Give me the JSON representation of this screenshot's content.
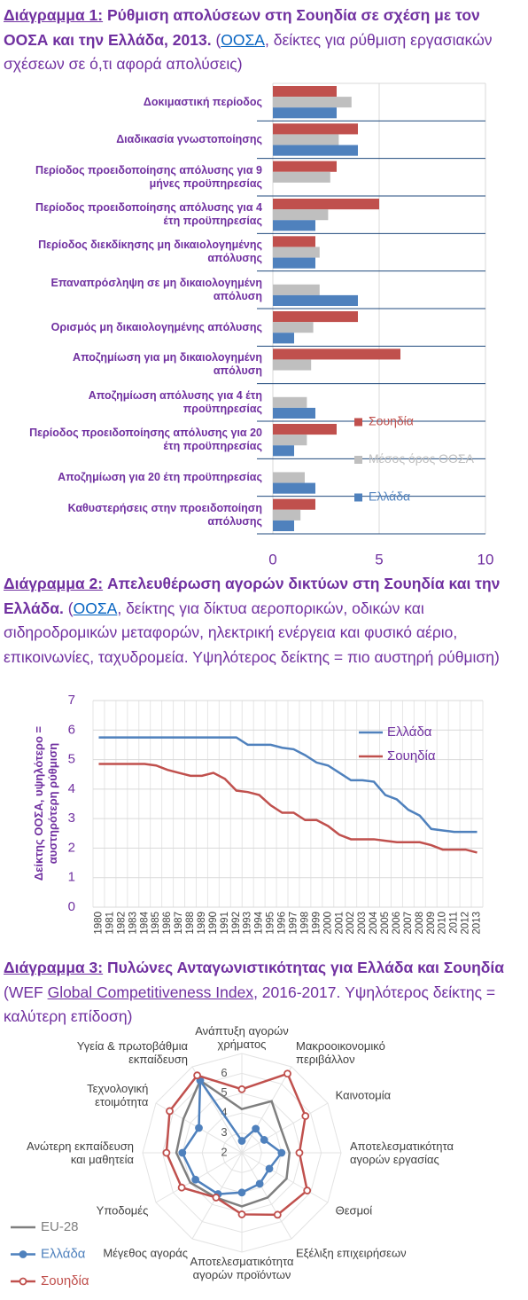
{
  "chart_data": [
    {
      "type": "bar",
      "orientation": "horizontal",
      "label": "Διάγραμμα 1:",
      "title": "Ρύθμιση απολύσεων στη Σουηδία σε σχέση με τον ΟΟΣΑ και την Ελλάδα, 2013.",
      "subtitle": [
        "(",
        "ΟΟΣΑ",
        ", δείκτες για ρύθμιση εργασιακών σχέσεων σε ό,τι αφορά απολύσεις)"
      ],
      "categories": [
        "Δοκιμαστική περίοδος",
        "Διαδικασία γνωστοποίησης",
        "Περίοδος προειδοποίησης απόλυσης για 9\nμήνες προϋπηρεσίας",
        "Περίοδος προειδοποίησης απόλυσης για 4\nέτη προϋπηρεσίας",
        "Περίοδος διεκδίκησης μη δικαιολογημένης\nαπόλυσης",
        "Επαναπρόσληψη σε μη δικαιολογημένη\nαπόλυση",
        "Ορισμός μη δικαιολογημένης απόλυσης",
        "Αποζημίωση για μη δικαιολογημένη\nαπόλυση",
        "Αποζημίωση απόλυσης για 4 έτη\nπροϋπηρεσίας",
        "Περίοδος προειδοποίησης απόλυσης για 20\nέτη προϋπηρεσίας",
        "Αποζημίωση για 20 έτη προϋπηρεσίας",
        "Καθυστερήσεις στην προειδοποίηση\nαπόλυσης"
      ],
      "series": [
        {
          "name": "Σουηδία",
          "color": "#c0504d",
          "values": [
            3,
            4,
            3,
            5,
            2,
            0,
            4,
            6,
            0,
            3,
            0,
            2
          ]
        },
        {
          "name": "Μέσος όρος ΟΟΣΑ",
          "color": "#bfbfbf",
          "values": [
            3.7,
            3.1,
            2.7,
            2.6,
            2.2,
            2.2,
            1.9,
            1.8,
            1.6,
            1.6,
            1.5,
            1.3
          ]
        },
        {
          "name": "Ελλάδα",
          "color": "#4f81bd",
          "values": [
            3,
            4,
            0,
            2,
            2,
            4,
            1,
            0,
            2,
            1,
            2,
            1
          ]
        }
      ],
      "xlim": [
        0,
        10
      ],
      "xticks": [
        0,
        5,
        10
      ],
      "grid": true,
      "legend": "right"
    },
    {
      "type": "line",
      "label": "Διάγραμμα 2:",
      "title": "Απελευθέρωση αγορών δικτύων στη Σουηδία και την Ελλάδα.",
      "subtitle": [
        "(",
        "ΟΟΣΑ",
        ", δείκτης για δίκτυα αεροπορικών, οδικών και σιδηροδρομικών μεταφορών, ηλεκτρική ενέργεια και φυσικό αέριο, επικοινωνίες, ταχυδρομεία. Υψηλότερος δείκτης = πιο αυστηρή ρύθμιση)"
      ],
      "ylabel": "Δείκτης ΟΟΣΑ, υψηλότερο =\nαυστηρότερη ρύθμιση",
      "categories": [
        "1980",
        "1981",
        "1982",
        "1983",
        "1984",
        "1985",
        "1986",
        "1987",
        "1988",
        "1989",
        "1990",
        "1991",
        "1992",
        "1993",
        "1994",
        "1995",
        "1996",
        "1997",
        "1998",
        "1999",
        "2000",
        "2001",
        "2002",
        "2003",
        "2004",
        "2005",
        "2006",
        "2007",
        "2008",
        "2009",
        "2010",
        "2011",
        "2012",
        "2013"
      ],
      "series": [
        {
          "name": "Ελλάδα",
          "color": "#4f81bd",
          "values": [
            5.75,
            5.75,
            5.75,
            5.75,
            5.75,
            5.75,
            5.75,
            5.75,
            5.75,
            5.75,
            5.75,
            5.75,
            5.75,
            5.5,
            5.5,
            5.5,
            5.4,
            5.35,
            5.15,
            4.9,
            4.8,
            4.55,
            4.3,
            4.3,
            4.25,
            3.8,
            3.65,
            3.3,
            3.1,
            2.65,
            2.6,
            2.55,
            2.55,
            2.55
          ]
        },
        {
          "name": "Σουηδία",
          "color": "#c0504d",
          "values": [
            4.85,
            4.85,
            4.85,
            4.85,
            4.85,
            4.8,
            4.65,
            4.55,
            4.45,
            4.45,
            4.55,
            4.35,
            3.95,
            3.9,
            3.8,
            3.45,
            3.2,
            3.2,
            2.95,
            2.95,
            2.75,
            2.45,
            2.3,
            2.3,
            2.3,
            2.25,
            2.2,
            2.2,
            2.2,
            2.1,
            1.95,
            1.95,
            1.95,
            1.85
          ]
        }
      ],
      "ylim": [
        0,
        7
      ],
      "yticks": [
        0,
        1,
        2,
        3,
        4,
        5,
        6,
        7
      ],
      "grid": true,
      "legend": "upper right"
    },
    {
      "type": "radar",
      "label": "Διάγραμμα 3:",
      "title": "Πυλώνες Ανταγωνιστικότητας για Ελλάδα και Σουηδία",
      "subtitle": [
        "(WEF ",
        "Global Competitiveness Index",
        ", 2016-2017. Υψηλότερος δείκτης = καλύτερη επίδοση)"
      ],
      "categories": [
        "Ανάπτυξη αγορών\nχρήματος",
        "Μακροοικονομικό\nπεριβάλλον",
        "Καινοτομία",
        "Αποτελεσματικότητα\nαγορών εργασίας",
        "Θεσμοί",
        "Εξέλιξη επιχειρήσεων",
        "Αποτελεσματικότητα\nαγορών προϊόντων",
        "Μέγεθος αγοράς",
        "Υποδομές",
        "Ανώτερη εκπαίδευση\nκαι μαθητεία",
        "Τεχνολογική\nετοιμότητα",
        "Υγεία & πρωτοβάθμια\nεκπαίδευση"
      ],
      "series": [
        {
          "name": "EU-28",
          "color": "#7f7f7f",
          "values": [
            4.2,
            5.0,
            4.3,
            4.4,
            4.6,
            4.6,
            4.7,
            4.6,
            5.0,
            5.3,
            5.4,
            6.2
          ]
        },
        {
          "name": "Ελλάδα",
          "color": "#4f81bd",
          "marker": "circle",
          "values": [
            2.6,
            3.4,
            3.3,
            4.0,
            3.6,
            3.8,
            4.0,
            4.4,
            4.7,
            5.0,
            4.5,
            6.2
          ]
        },
        {
          "name": "Σουηδία",
          "color": "#c0504d",
          "marker": "open-circle",
          "values": [
            5.2,
            6.6,
            5.7,
            4.9,
            5.8,
            5.6,
            5.1,
            4.6,
            5.5,
            5.8,
            6.2,
            6.5
          ]
        }
      ],
      "ylim": [
        2,
        7
      ],
      "yticks": [
        2,
        3,
        4,
        5,
        6
      ],
      "grid": true,
      "legend": "lower left"
    }
  ]
}
